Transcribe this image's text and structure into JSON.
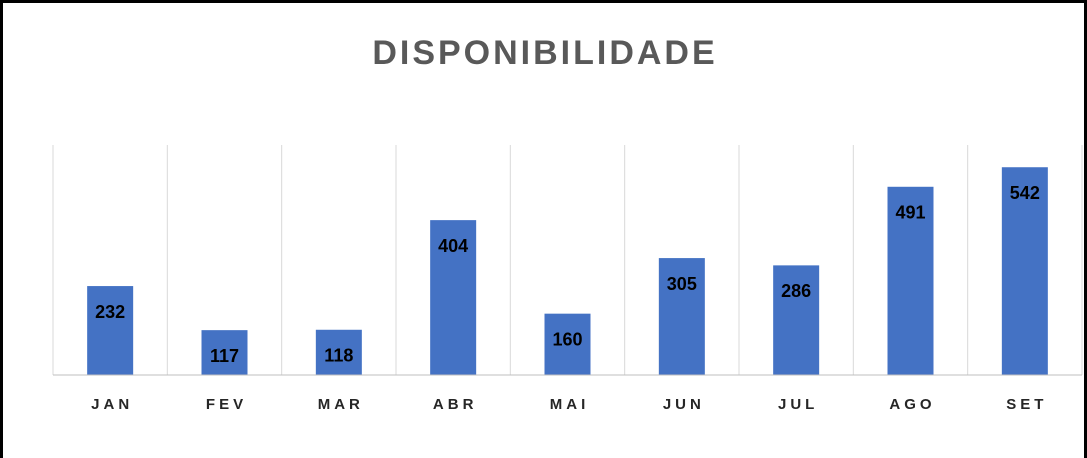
{
  "chart_data": {
    "type": "bar",
    "title": "DISPONIBILIDADE",
    "categories": [
      "JAN",
      "FEV",
      "MAR",
      "ABR",
      "MAI",
      "JUN",
      "JUL",
      "AGO",
      "SET"
    ],
    "values": [
      232,
      117,
      118,
      404,
      160,
      305,
      286,
      491,
      542
    ],
    "color": "#4472c4",
    "ylim": [
      0,
      600
    ],
    "grid": true
  }
}
